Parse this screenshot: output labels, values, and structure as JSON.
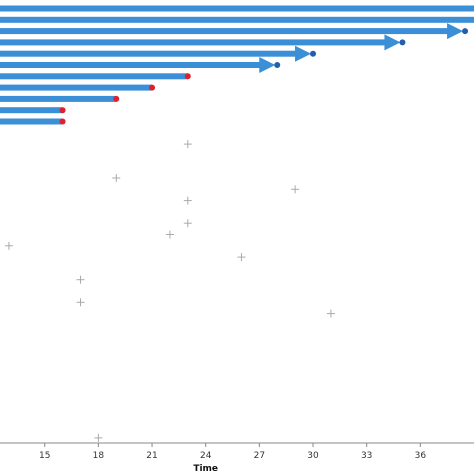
{
  "chart_data": {
    "type": "scatter",
    "title": "",
    "xlabel": "Time",
    "ylabel": "",
    "xlim": [
      12.5,
      39
    ],
    "x_ticks": [
      15,
      18,
      21,
      24,
      27,
      30,
      33,
      36
    ],
    "grid": false,
    "legend": "none",
    "colors": {
      "bar": "#3a8fd6",
      "end_blue": "#1f5fae",
      "end_red": "#e0202a",
      "censor": "#aaaaaa",
      "axis": "#888888"
    },
    "intervals": [
      {
        "start": 12.5,
        "end": 39,
        "marker": "none"
      },
      {
        "start": 12.5,
        "end": 39,
        "marker": "none"
      },
      {
        "start": 12.5,
        "end": 38.5,
        "marker": "arrow-dot-blue"
      },
      {
        "start": 12.5,
        "end": 35,
        "marker": "arrow-dot-blue"
      },
      {
        "start": 12.5,
        "end": 30,
        "marker": "arrow-dot-blue"
      },
      {
        "start": 12.5,
        "end": 28,
        "marker": "arrow-dot-blue"
      },
      {
        "start": 12.5,
        "end": 23,
        "marker": "dot-red"
      },
      {
        "start": 12.5,
        "end": 21,
        "marker": "dot-red"
      },
      {
        "start": 12.5,
        "end": 19,
        "marker": "dot-red"
      },
      {
        "start": 12.5,
        "end": 16,
        "marker": "dot-red"
      },
      {
        "start": 12.5,
        "end": 16,
        "marker": "dot-red"
      }
    ],
    "censored_points": [
      {
        "x": 23,
        "row": 12
      },
      {
        "x": 19,
        "row": 15
      },
      {
        "x": 29,
        "row": 16
      },
      {
        "x": 23,
        "row": 17
      },
      {
        "x": 23,
        "row": 19
      },
      {
        "x": 22,
        "row": 20
      },
      {
        "x": 13,
        "row": 21
      },
      {
        "x": 26,
        "row": 22
      },
      {
        "x": 17,
        "row": 24
      },
      {
        "x": 17,
        "row": 26
      },
      {
        "x": 31,
        "row": 27
      },
      {
        "x": 18,
        "row": 38
      }
    ]
  }
}
